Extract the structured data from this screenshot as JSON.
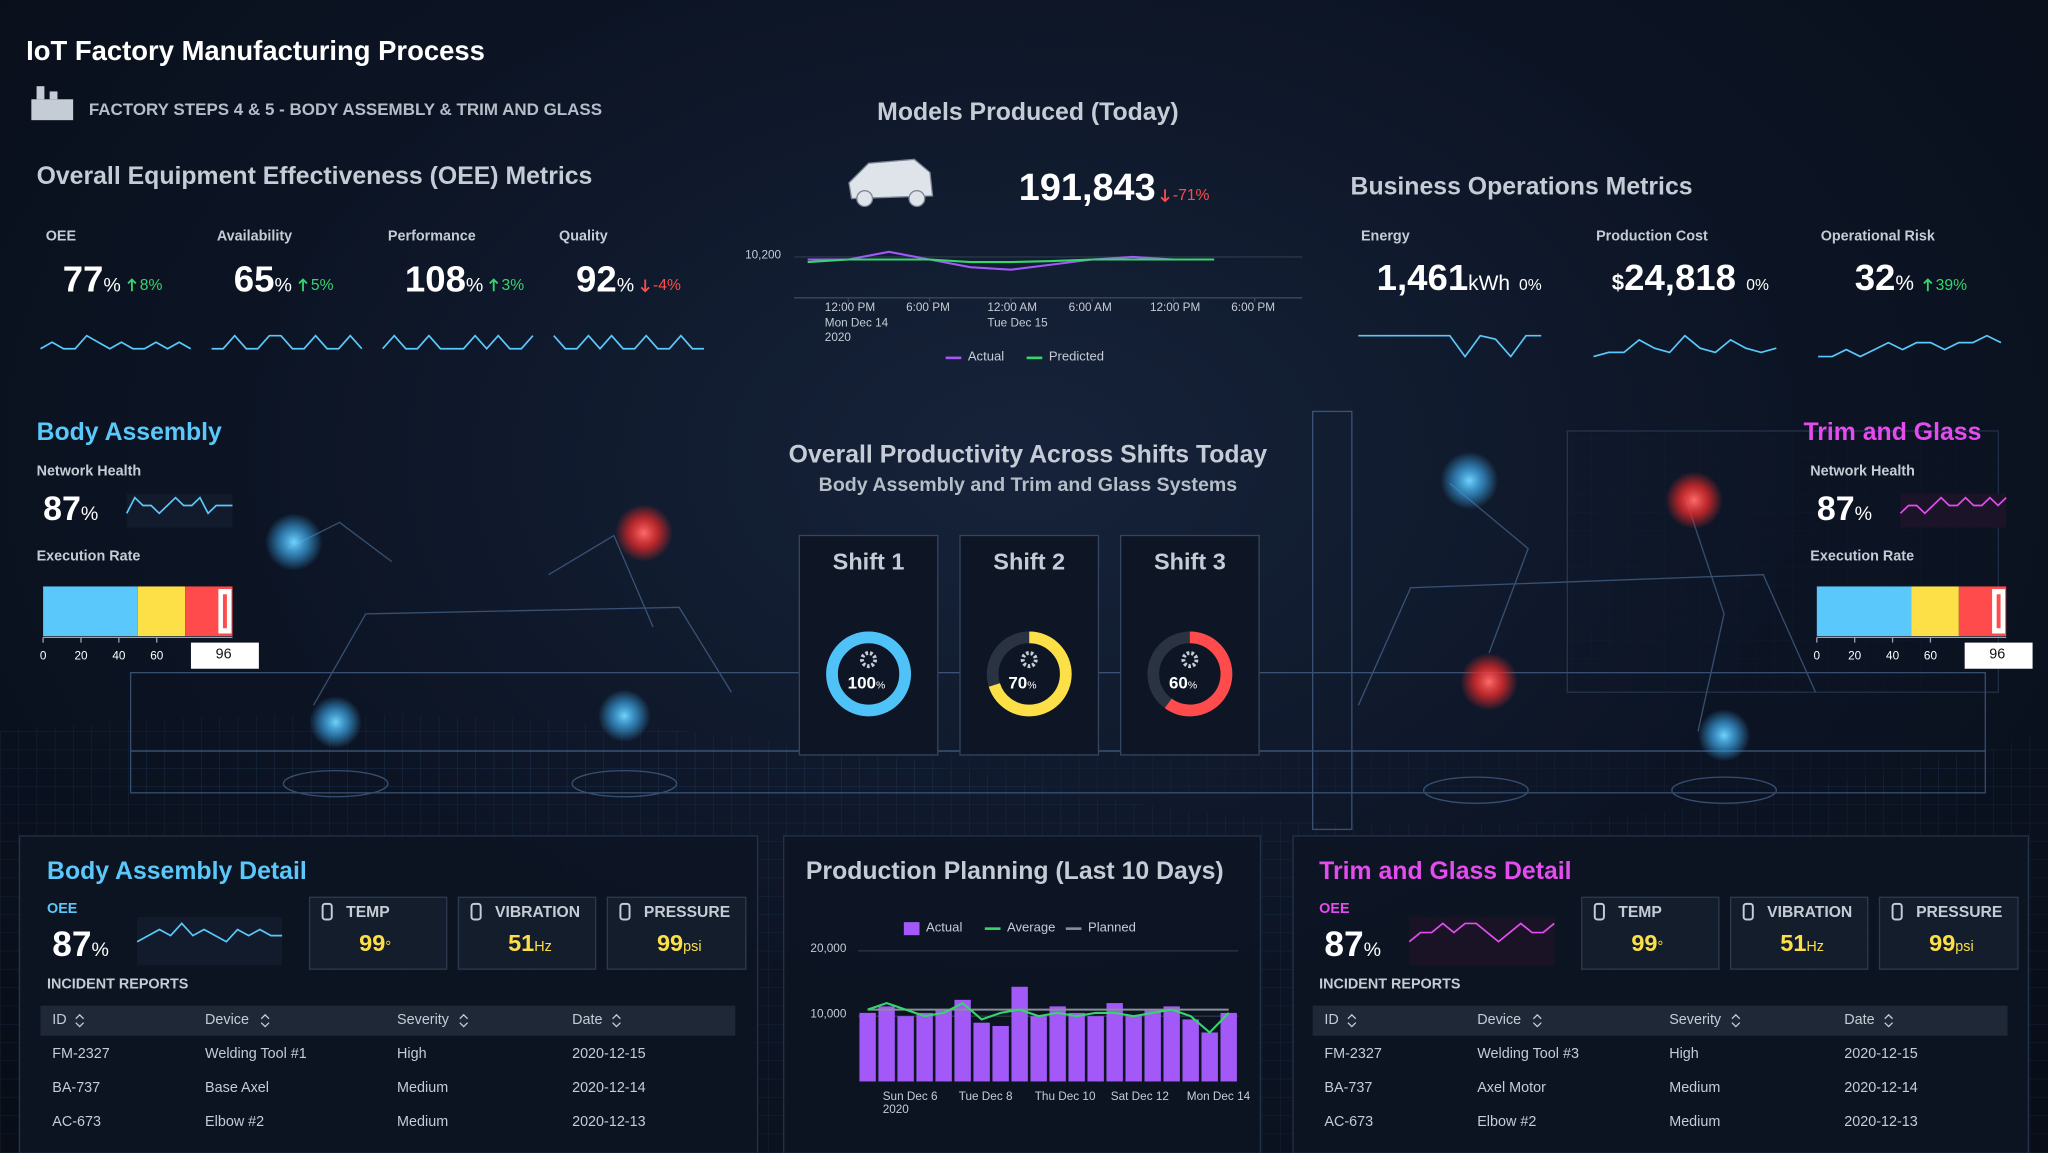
{
  "header": {
    "title": "IoT Factory Manufacturing Process",
    "subtitle": "FACTORY STEPS 4 & 5 - BODY ASSEMBLY & TRIM AND GLASS"
  },
  "oee": {
    "title": "Overall Equipment Effectiveness (OEE) Metrics",
    "metrics": [
      {
        "label": "OEE",
        "value": 77,
        "unit": "%",
        "change": "8%",
        "trend": "up",
        "spark": [
          5,
          6,
          5,
          5,
          7,
          6,
          5,
          6,
          5,
          5,
          6,
          5,
          6,
          5
        ]
      },
      {
        "label": "Availability",
        "value": 65,
        "unit": "%",
        "change": "5%",
        "trend": "up",
        "spark": [
          5,
          5,
          6,
          5,
          5,
          6,
          6,
          5,
          5,
          6,
          5,
          5,
          6,
          5
        ]
      },
      {
        "label": "Performance",
        "value": 108,
        "unit": "%",
        "change": "3%",
        "trend": "up",
        "spark": [
          5,
          6,
          5,
          5,
          6,
          5,
          5,
          5,
          6,
          5,
          6,
          5,
          5,
          6
        ]
      },
      {
        "label": "Quality",
        "value": 92,
        "unit": "%",
        "change": "-4%",
        "trend": "down",
        "spark": [
          6,
          5,
          5,
          6,
          5,
          6,
          5,
          5,
          6,
          5,
          5,
          6,
          5,
          5
        ]
      }
    ]
  },
  "models": {
    "title": "Models Produced (Today)",
    "value": "191,843",
    "change": "-71%",
    "trend": "down",
    "chart": {
      "type": "line",
      "x": [
        -3,
        0,
        3,
        6,
        9,
        12,
        15,
        18,
        21,
        24,
        27
      ],
      "series": [
        {
          "name": "Actual",
          "color": "#a259f7",
          "values": [
            10195,
            10195,
            10210,
            10195,
            10180,
            10175,
            10185,
            10195,
            10200,
            10195,
            10195
          ]
        },
        {
          "name": "Predicted",
          "color": "#35d66b",
          "values": [
            10190,
            10195,
            10195,
            10195,
            10190,
            10190,
            10192,
            10195,
            10195,
            10195,
            10195
          ]
        }
      ],
      "xlim": [
        -4,
        33.5
      ],
      "ylim": [
        10120,
        10230
      ],
      "xticks": [
        {
          "value": 0,
          "label": "12:00 PM\nMon Dec 14\n2020"
        },
        {
          "value": 6,
          "label": "6:00 PM"
        },
        {
          "value": 12,
          "label": "12:00 AM\nTue Dec 15"
        },
        {
          "value": 18,
          "label": "6:00 AM"
        },
        {
          "value": 24,
          "label": "12:00 PM"
        },
        {
          "value": 30,
          "label": "6:00 PM"
        }
      ],
      "yticks": [
        {
          "value": 10200,
          "label": "10,200"
        }
      ]
    }
  },
  "business": {
    "title": "Business Operations Metrics",
    "metrics": [
      {
        "label": "Energy",
        "value": "1,461",
        "unit": "kWh",
        "change": "0%",
        "trend": "flat",
        "spark": [
          8,
          8,
          8,
          8,
          8,
          8,
          8,
          2,
          8,
          7,
          2,
          8,
          8
        ]
      },
      {
        "label": "Production Cost",
        "prefix": "$",
        "value": "24,818",
        "change": "0%",
        "trend": "flat",
        "spark": [
          2,
          3,
          3,
          6,
          4,
          3,
          7,
          4,
          3,
          6,
          4,
          3,
          4
        ]
      },
      {
        "label": "Operational Risk",
        "value": 32,
        "unit": "%",
        "change": "39%",
        "trend": "up",
        "spark": [
          3,
          3,
          4,
          3,
          4,
          5,
          4,
          5,
          5,
          4,
          5,
          5,
          6,
          5
        ]
      }
    ]
  },
  "stations": [
    {
      "title": "Body Assembly",
      "color": "#5ac8fa",
      "network_label": "Network Health",
      "network_value": 87,
      "unit": "%",
      "spark": [
        5,
        7,
        6,
        6,
        5,
        6,
        7,
        6,
        6,
        7,
        5,
        6,
        6,
        6
      ],
      "execution_label": "Execution Rate",
      "execution": {
        "type": "bullet",
        "xlim": [
          0,
          100
        ],
        "xticks": [
          0,
          20,
          40,
          60
        ],
        "value": 96,
        "bands": [
          {
            "from": 0,
            "to": 50,
            "color": "#5ac8fa"
          },
          {
            "from": 50,
            "to": 75,
            "color": "#fde047"
          },
          {
            "from": 75,
            "to": 100,
            "color": "#ff4b4b"
          }
        ]
      }
    },
    {
      "title": "Trim and Glass",
      "color": "#e54cf0",
      "network_label": "Network Health",
      "network_value": 87,
      "unit": "%",
      "spark": [
        5,
        6,
        6,
        5,
        6,
        7,
        6,
        6,
        7,
        6,
        6,
        7,
        6,
        7
      ],
      "execution_label": "Execution Rate",
      "execution": {
        "type": "bullet",
        "xlim": [
          0,
          100
        ],
        "xticks": [
          0,
          20,
          40,
          60
        ],
        "value": 96,
        "bands": [
          {
            "from": 0,
            "to": 50,
            "color": "#5ac8fa"
          },
          {
            "from": 50,
            "to": 75,
            "color": "#fde047"
          },
          {
            "from": 75,
            "to": 100,
            "color": "#ff4b4b"
          }
        ]
      }
    }
  ],
  "productivity": {
    "title": "Overall Productivity Across Shifts Today",
    "subtitle": "Body Assembly and Trim and Glass Systems",
    "shifts": [
      {
        "name": "Shift 1",
        "value": 100,
        "unit": "%",
        "color": "#4fc3f7"
      },
      {
        "name": "Shift 2",
        "value": 70,
        "unit": "%",
        "color": "#fde047"
      },
      {
        "name": "Shift 3",
        "value": 60,
        "unit": "%",
        "color": "#ff4b4b"
      }
    ]
  },
  "details": [
    {
      "title": "Body Assembly Detail",
      "color": "#5ac8fa",
      "oee_label": "OEE",
      "oee_value": 87,
      "oee_unit": "%",
      "spark": [
        5,
        6,
        7,
        6,
        8,
        6,
        7,
        6,
        5,
        7,
        6,
        7,
        6,
        6
      ],
      "sensors": [
        {
          "label": "TEMP",
          "value": 99,
          "unit": "°"
        },
        {
          "label": "VIBRATION",
          "value": 51,
          "unit": "Hz"
        },
        {
          "label": "PRESSURE",
          "value": 99,
          "unit": "psi"
        }
      ],
      "incidents_title": "INCIDENT REPORTS",
      "table": {
        "columns": [
          "ID",
          "Device",
          "Severity",
          "Date"
        ],
        "rows": [
          [
            "FM-2327",
            "Welding Tool #1",
            "High",
            "2020-12-15"
          ],
          [
            "BA-737",
            "Base Axel",
            "Medium",
            "2020-12-14"
          ],
          [
            "AC-673",
            "Elbow #2",
            "Medium",
            "2020-12-13"
          ]
        ]
      }
    },
    {
      "title": "Trim and Glass Detail",
      "color": "#e54cf0",
      "oee_label": "OEE",
      "oee_value": 87,
      "oee_unit": "%",
      "spark": [
        5,
        6,
        6,
        7,
        6,
        7,
        7,
        6,
        5,
        6,
        7,
        6,
        6,
        7
      ],
      "sensors": [
        {
          "label": "TEMP",
          "value": 99,
          "unit": "°"
        },
        {
          "label": "VIBRATION",
          "value": 51,
          "unit": "Hz"
        },
        {
          "label": "PRESSURE",
          "value": 99,
          "unit": "psi"
        }
      ],
      "incidents_title": "INCIDENT REPORTS",
      "table": {
        "columns": [
          "ID",
          "Device",
          "Severity",
          "Date"
        ],
        "rows": [
          [
            "FM-2327",
            "Welding Tool #3",
            "High",
            "2020-12-15"
          ],
          [
            "BA-737",
            "Axel Motor",
            "Medium",
            "2020-12-14"
          ],
          [
            "AC-673",
            "Elbow #2",
            "Medium",
            "2020-12-13"
          ]
        ]
      }
    }
  ],
  "planning": {
    "title": "Production Planning (Last 10 Days)",
    "chart": {
      "type": "bar-line",
      "categories": [
        null,
        "Sun Dec 6\n2020",
        null,
        null,
        null,
        "Tue Dec 8",
        null,
        null,
        null,
        "Thu Dec 10",
        null,
        null,
        null,
        "Sat Dec 12",
        null,
        null,
        null,
        "Mon Dec 14",
        null,
        null
      ],
      "series": [
        {
          "name": "Actual",
          "kind": "bar",
          "color": "#a259f7",
          "values": [
            10500,
            11500,
            10000,
            10500,
            11000,
            12500,
            9000,
            8500,
            14500,
            10000,
            11500,
            10500,
            10000,
            12000,
            10000,
            11000,
            11500,
            9500,
            7500,
            10500
          ]
        },
        {
          "name": "Average",
          "kind": "line",
          "color": "#35d66b",
          "values": [
            11000,
            12000,
            11000,
            10000,
            10500,
            12000,
            9500,
            10500,
            11000,
            10000,
            10500,
            10000,
            10500,
            10500,
            10000,
            10500,
            11000,
            10000,
            7500,
            10500
          ]
        },
        {
          "name": "Planned",
          "kind": "line",
          "color": "#8a8f99",
          "values": [
            11000,
            11000,
            11000,
            11000,
            11000,
            11000,
            11000,
            11000,
            11000,
            11000,
            11000,
            11000,
            11000,
            11000,
            11000,
            11000,
            11000,
            11000,
            11000,
            11000
          ]
        }
      ],
      "ylim": [
        0,
        22000
      ],
      "yticks": [
        {
          "value": 10000,
          "label": "10,000"
        },
        {
          "value": 20000,
          "label": "20,000"
        }
      ]
    }
  }
}
